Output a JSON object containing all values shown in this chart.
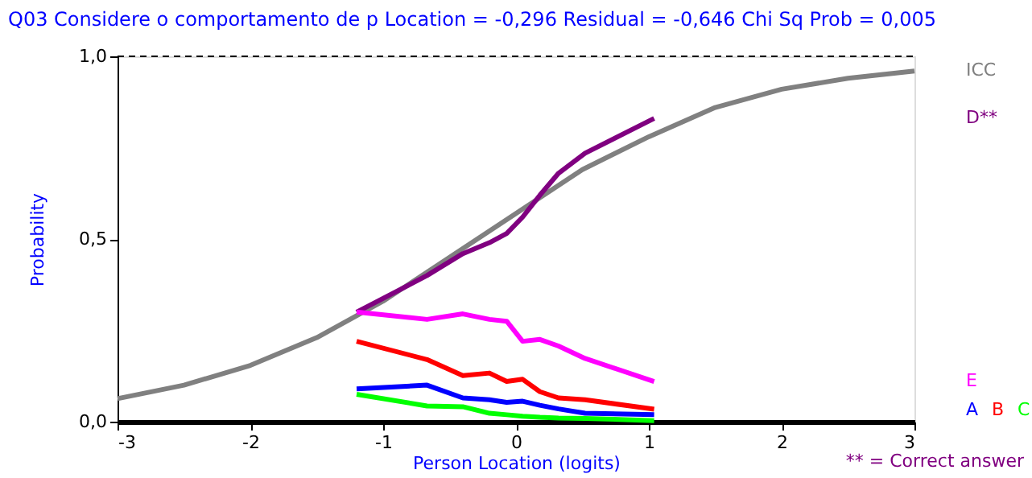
{
  "chart_data": {
    "type": "line",
    "title": "Q03   Considere o comportamento de p    Location = -0,296    Residual = -0,646    Chi Sq Prob = 0,005",
    "xlabel": "Person Location (logits)",
    "ylabel": "Probability",
    "xlim": [
      -3,
      3
    ],
    "ylim": [
      0,
      1
    ],
    "xticks": [
      -3,
      -2,
      -1,
      0,
      1,
      2,
      3
    ],
    "yticks": [
      {
        "value": 0,
        "label": "0,0"
      },
      {
        "value": 0.5,
        "label": "0,5"
      },
      {
        "value": 1,
        "label": "1,0"
      }
    ],
    "grid": false,
    "x": [
      -1.2,
      -0.67,
      -0.4,
      -0.2,
      -0.07,
      0.05,
      0.18,
      0.32,
      0.52,
      1.04
    ],
    "series": [
      {
        "name": "ICC",
        "color": "#808080",
        "x": [
          -3,
          -2.5,
          -2,
          -1.5,
          -1,
          -0.5,
          0,
          0.5,
          1,
          1.5,
          2,
          2.5,
          3
        ],
        "values": [
          0.063,
          0.1,
          0.154,
          0.23,
          0.33,
          0.45,
          0.57,
          0.69,
          0.78,
          0.86,
          0.91,
          0.94,
          0.96
        ]
      },
      {
        "name": "D**",
        "color": "#800080",
        "values": [
          0.3,
          0.4,
          0.46,
          0.49,
          0.515,
          0.56,
          0.62,
          0.68,
          0.735,
          0.83
        ]
      },
      {
        "name": "E",
        "color": "#ff00ff",
        "values": [
          0.3,
          0.28,
          0.295,
          0.28,
          0.275,
          0.22,
          0.225,
          0.207,
          0.173,
          0.11
        ]
      },
      {
        "name": "A",
        "color": "#0000ff",
        "values": [
          0.09,
          0.1,
          0.065,
          0.06,
          0.053,
          0.056,
          0.045,
          0.035,
          0.023,
          0.019
        ]
      },
      {
        "name": "B",
        "color": "#ff0000",
        "values": [
          0.22,
          0.17,
          0.126,
          0.133,
          0.11,
          0.116,
          0.082,
          0.065,
          0.06,
          0.034
        ]
      },
      {
        "name": "C",
        "color": "#00ff00",
        "values": [
          0.075,
          0.043,
          0.041,
          0.023,
          0.019,
          0.015,
          0.012,
          0.01,
          0.009,
          0.003
        ]
      }
    ],
    "ref_lines": [
      {
        "axis": "y",
        "value": 1,
        "color": "#000000",
        "line_style": "dashed"
      }
    ],
    "annotations": [
      "** = Correct answer"
    ]
  }
}
